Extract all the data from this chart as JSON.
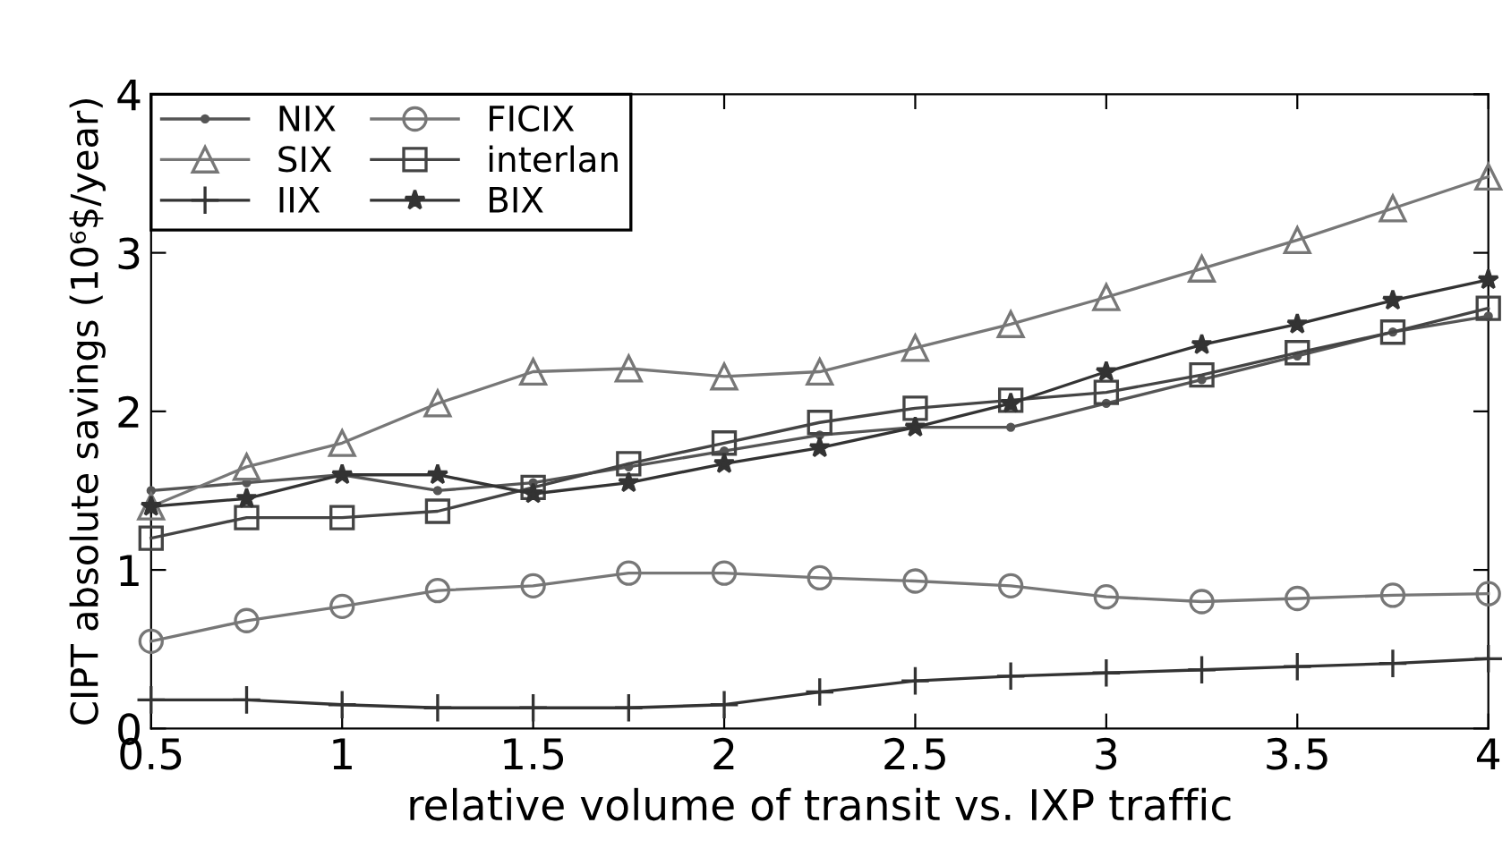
{
  "chart_data": {
    "type": "line",
    "xlabel": "relative volume of transit vs. IXP traffic",
    "ylabel": "CIPT absolute savings (10⁶$/year)",
    "x": [
      0.5,
      0.75,
      1,
      1.25,
      1.5,
      1.75,
      2,
      2.25,
      2.5,
      2.75,
      3,
      3.25,
      3.5,
      3.75,
      4
    ],
    "xlim": [
      0.5,
      4
    ],
    "xticks": [
      0.5,
      1,
      1.5,
      2,
      2.5,
      3,
      3.5,
      4
    ],
    "ylim": [
      0,
      4
    ],
    "yticks": [
      0,
      1,
      2,
      3,
      4
    ],
    "grid": false,
    "legend": "top left",
    "series": [
      {
        "name": "NIX",
        "color": "#555555",
        "marker": "point",
        "values": [
          1.5,
          1.55,
          1.6,
          1.5,
          1.55,
          1.65,
          1.75,
          1.85,
          1.9,
          1.9,
          2.05,
          2.2,
          2.35,
          2.5,
          2.6
        ]
      },
      {
        "name": "FICIX",
        "color": "#777777",
        "marker": "circle",
        "values": [
          0.55,
          0.68,
          0.77,
          0.87,
          0.9,
          0.98,
          0.98,
          0.95,
          0.93,
          0.9,
          0.83,
          0.8,
          0.82,
          0.84,
          0.85
        ]
      },
      {
        "name": "SIX",
        "color": "#777777",
        "marker": "triangle",
        "values": [
          1.4,
          1.65,
          1.8,
          2.05,
          2.25,
          2.27,
          2.22,
          2.25,
          2.4,
          2.55,
          2.72,
          2.9,
          3.08,
          3.28,
          3.48
        ]
      },
      {
        "name": "interlan",
        "color": "#444444",
        "marker": "square",
        "values": [
          1.2,
          1.33,
          1.33,
          1.37,
          1.52,
          1.67,
          1.8,
          1.93,
          2.02,
          2.07,
          2.12,
          2.23,
          2.37,
          2.5,
          2.65
        ]
      },
      {
        "name": "IIX",
        "color": "#333333",
        "marker": "plus",
        "values": [
          0.18,
          0.18,
          0.15,
          0.13,
          0.13,
          0.13,
          0.15,
          0.23,
          0.3,
          0.33,
          0.35,
          0.37,
          0.39,
          0.41,
          0.44
        ]
      },
      {
        "name": "BIX",
        "color": "#333333",
        "marker": "star",
        "values": [
          1.4,
          1.45,
          1.6,
          1.6,
          1.48,
          1.55,
          1.67,
          1.77,
          1.9,
          2.05,
          2.25,
          2.42,
          2.55,
          2.7,
          2.83
        ]
      }
    ]
  }
}
